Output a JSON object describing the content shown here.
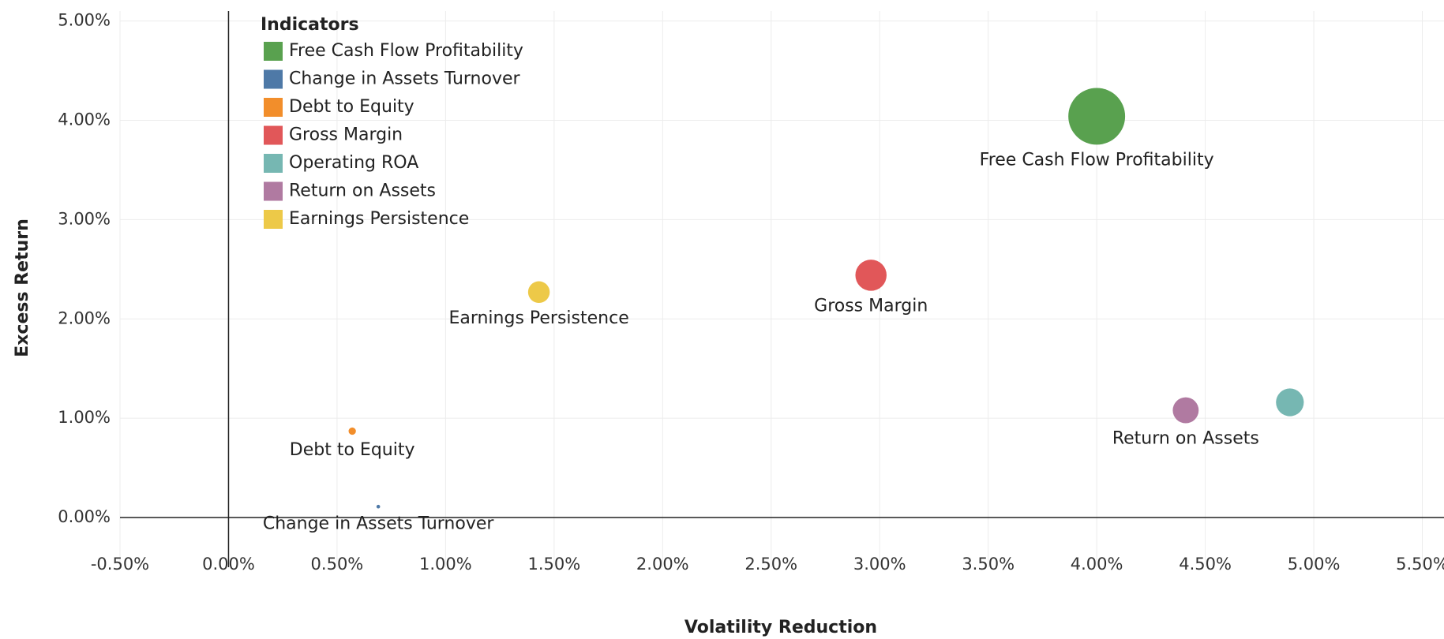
{
  "chart_data": {
    "type": "scatter",
    "x_label": "Volatility Reduction",
    "y_label": "Excess Return",
    "legend_title": "Indicators",
    "legend": "top-left",
    "grid": true,
    "xlim": [
      -0.5,
      5.6
    ],
    "ylim": [
      -0.5,
      5.1
    ],
    "xticks": [
      {
        "value": -0.5,
        "label": "-0.50%"
      },
      {
        "value": 0,
        "label": "0.00%"
      },
      {
        "value": 0.5,
        "label": "0.50%"
      },
      {
        "value": 1,
        "label": "1.00%"
      },
      {
        "value": 1.5,
        "label": "1.50%"
      },
      {
        "value": 2,
        "label": "2.00%"
      },
      {
        "value": 2.5,
        "label": "2.50%"
      },
      {
        "value": 3,
        "label": "3.00%"
      },
      {
        "value": 3.5,
        "label": "3.50%"
      },
      {
        "value": 4,
        "label": "4.00%"
      },
      {
        "value": 4.5,
        "label": "4.50%"
      },
      {
        "value": 5,
        "label": "5.00%"
      },
      {
        "value": 5.5,
        "label": "5.50%"
      }
    ],
    "yticks": [
      {
        "value": 0,
        "label": "0.00%"
      },
      {
        "value": 1,
        "label": "1.00%"
      },
      {
        "value": 2,
        "label": "2.00%"
      },
      {
        "value": 3,
        "label": "3.00%"
      },
      {
        "value": 4,
        "label": "4.00%"
      },
      {
        "value": 5,
        "label": "5.00%"
      }
    ],
    "series": [
      {
        "name": "Free Cash Flow Profitability",
        "color": "#59a14f",
        "x": [
          4.0
        ],
        "values": [
          4.04
        ],
        "size": [
          96
        ],
        "label": "Free Cash Flow Profitability"
      },
      {
        "name": "Change in Assets Turnover",
        "color": "#4e79a7",
        "x": [
          0.69
        ],
        "values": [
          0.11
        ],
        "size": [
          0.4
        ],
        "label": "Change in Assets Turnover"
      },
      {
        "name": "Debt to Equity",
        "color": "#f28e2b",
        "x": [
          0.57
        ],
        "values": [
          0.87
        ],
        "size": [
          1.6
        ],
        "label": "Debt to Equity"
      },
      {
        "name": "Gross Margin",
        "color": "#e15759",
        "x": [
          2.96
        ],
        "values": [
          2.44
        ],
        "size": [
          29
        ],
        "label": "Gross Margin"
      },
      {
        "name": "Operating ROA",
        "color": "#76b7b2",
        "x": [
          4.89
        ],
        "values": [
          1.16
        ],
        "size": [
          23
        ]
      },
      {
        "name": "Return on Assets",
        "color": "#b07aa1",
        "x": [
          4.41
        ],
        "values": [
          1.08
        ],
        "size": [
          20
        ],
        "label": "Return on Assets"
      },
      {
        "name": "Earnings Persistence",
        "color": "#edc948",
        "x": [
          1.43
        ],
        "values": [
          2.27
        ],
        "size": [
          14
        ],
        "label": "Earnings Persistence"
      }
    ]
  }
}
